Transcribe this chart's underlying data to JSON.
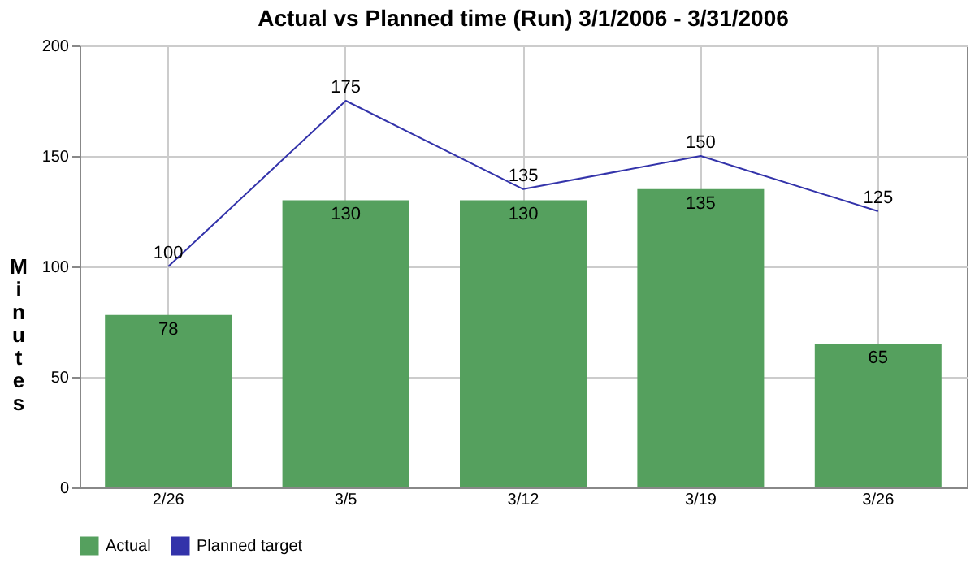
{
  "chart_data": {
    "type": "bar",
    "title": "Actual vs Planned time (Run) 3/1/2006 - 3/31/2006",
    "ylabel": "Minutes",
    "categories": [
      "2/26",
      "3/5",
      "3/12",
      "3/19",
      "3/26"
    ],
    "series": [
      {
        "name": "Actual",
        "color": "#55a05e",
        "values": [
          78,
          130,
          130,
          135,
          65
        ]
      },
      {
        "name": "Planned target",
        "type": "line",
        "color": "#3333aa",
        "values": [
          100,
          175,
          135,
          150,
          125
        ]
      }
    ],
    "ylim": [
      0,
      200
    ],
    "yticks": [
      0,
      50,
      100,
      150,
      200
    ],
    "grid": true,
    "legend": "bottom",
    "data_labels": true
  }
}
